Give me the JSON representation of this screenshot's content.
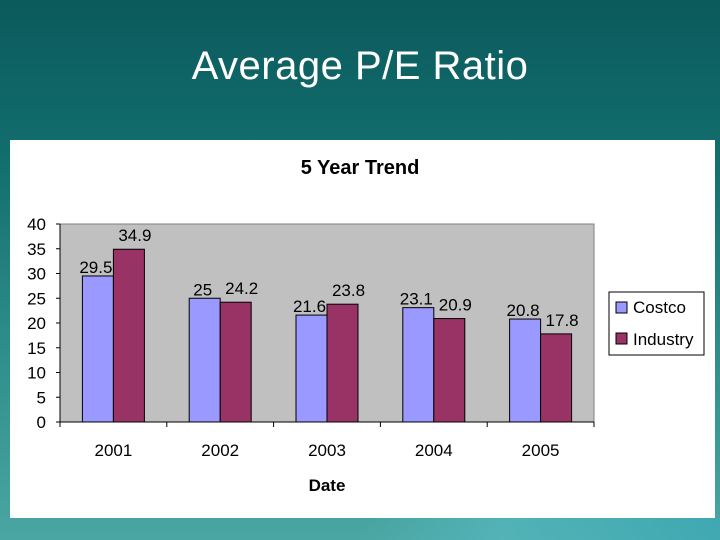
{
  "slide": {
    "title": "Average P/E Ratio"
  },
  "colors": {
    "costco": "#9999ff",
    "industry": "#993366",
    "plot_bg": "#c0c0c0"
  },
  "chart_data": {
    "type": "bar",
    "title": "5 Year Trend",
    "xlabel": "Date",
    "ylabel": "",
    "categories": [
      "2001",
      "2002",
      "2003",
      "2004",
      "2005"
    ],
    "series": [
      {
        "name": "Costco",
        "values": [
          29.5,
          25,
          21.6,
          23.1,
          20.8
        ],
        "labels": [
          "29.5",
          "25",
          "21.6",
          "23.1",
          "20.8"
        ]
      },
      {
        "name": "Industry",
        "values": [
          34.9,
          24.2,
          23.8,
          20.9,
          17.8
        ],
        "labels": [
          "34.9",
          "24.2",
          "23.8",
          "20.9",
          "17.8"
        ]
      }
    ],
    "ylim": [
      0,
      40
    ],
    "yticks": [
      0,
      5,
      10,
      15,
      20,
      25,
      30,
      35,
      40
    ],
    "grid": false,
    "legend": "right"
  }
}
